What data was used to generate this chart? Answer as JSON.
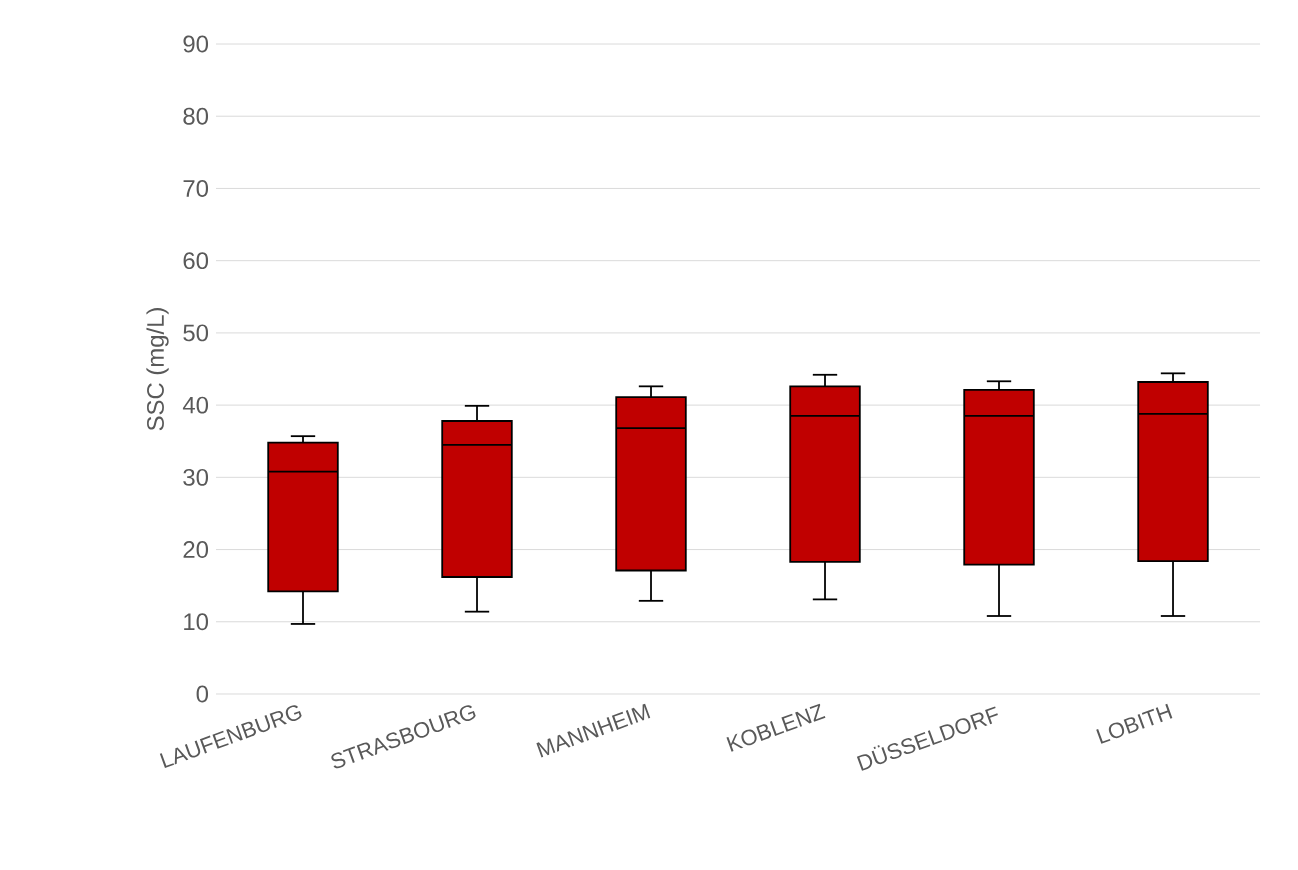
{
  "chart_data": {
    "type": "box",
    "ylabel": "SSC (mg/L)",
    "categories": [
      "LAUFENBURG",
      "STRASBOURG",
      "MANNHEIM",
      "KOBLENZ",
      "DÜSSELDORF",
      "LOBITH"
    ],
    "boxes": [
      {
        "low": 9.7,
        "q1": 14.2,
        "median": 30.8,
        "q3": 34.8,
        "high": 35.7
      },
      {
        "low": 11.4,
        "q1": 16.2,
        "median": 34.5,
        "q3": 37.8,
        "high": 39.9
      },
      {
        "low": 12.9,
        "q1": 17.1,
        "median": 36.8,
        "q3": 41.1,
        "high": 42.6
      },
      {
        "low": 13.1,
        "q1": 18.3,
        "median": 38.5,
        "q3": 42.6,
        "high": 44.2
      },
      {
        "low": 10.8,
        "q1": 17.9,
        "median": 38.5,
        "q3": 42.1,
        "high": 43.3
      },
      {
        "low": 10.8,
        "q1": 18.4,
        "median": 38.8,
        "q3": 43.2,
        "high": 44.4
      }
    ],
    "color": "#c00000",
    "ylim": [
      0,
      90
    ],
    "yticks": [
      0,
      10,
      20,
      30,
      40,
      50,
      60,
      70,
      80,
      90
    ],
    "grid": "y"
  }
}
